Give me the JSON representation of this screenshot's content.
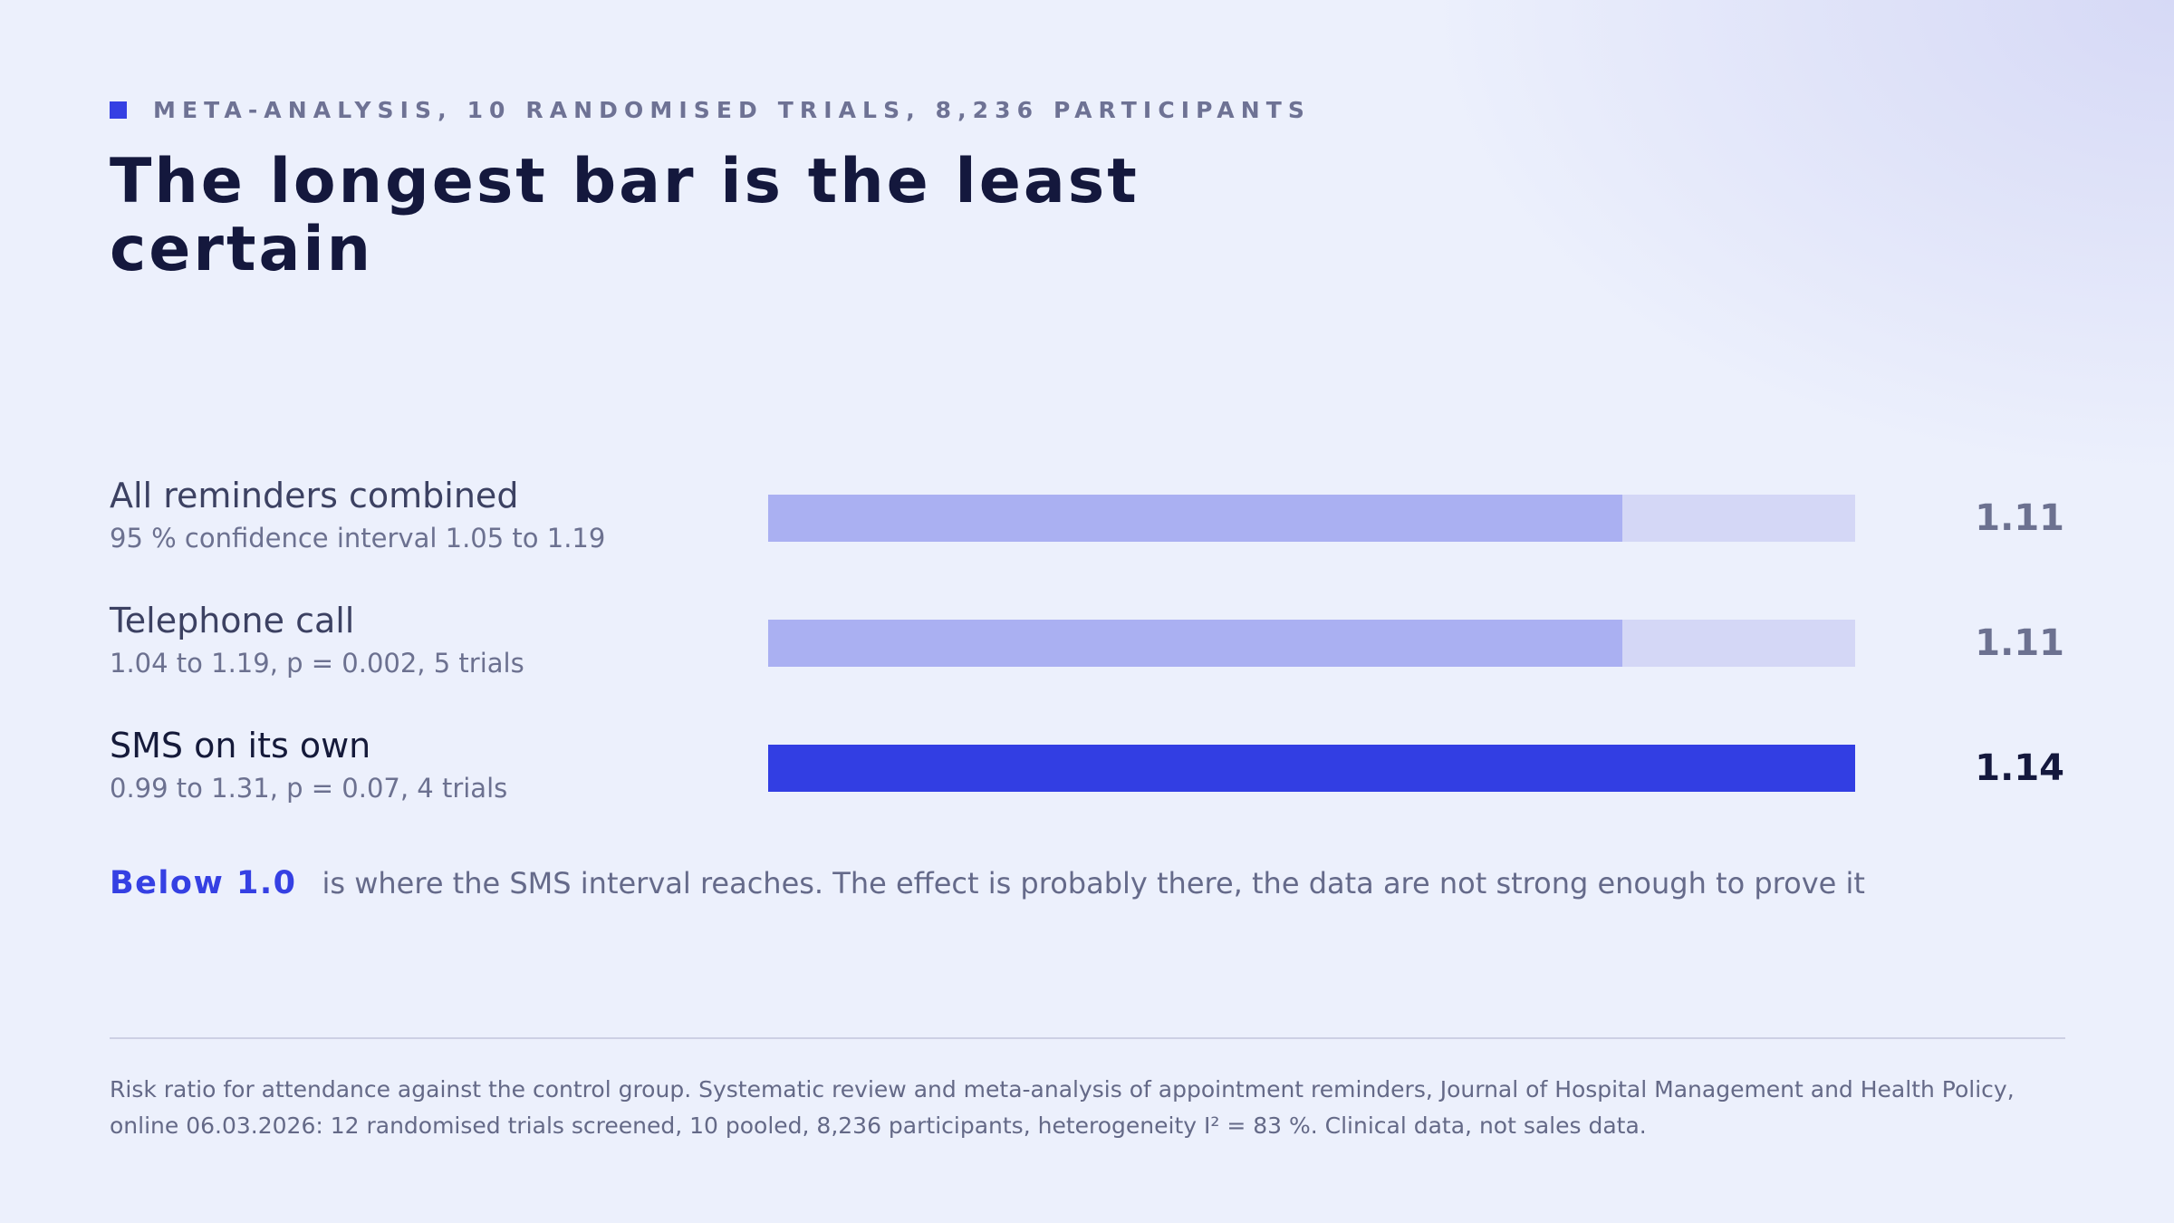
{
  "kicker": "META-ANALYSIS, 10 RANDOMISED TRIALS, 8,236 PARTICIPANTS",
  "title": "The longest bar is the least certain",
  "colors": {
    "accent": "#3540e3",
    "bar_muted": "#aab0f2",
    "track": "#d4d7f6",
    "title": "#14183d"
  },
  "chart_data": {
    "type": "bar",
    "orientation": "horizontal",
    "categories": [
      "All reminders combined",
      "Telephone call",
      "SMS on its own"
    ],
    "values": [
      1.11,
      1.11,
      1.14
    ],
    "value_labels": [
      "1.11",
      "1.11",
      "1.14"
    ],
    "subtitles": [
      "95 % confidence interval 1.05 to 1.19",
      "1.04 to 1.19, p = 0.002, 5 trials",
      "0.99 to 1.31, p = 0.07, 4 trials"
    ],
    "highlight_index": 2,
    "xlim": [
      1.0,
      1.14
    ]
  },
  "callout": {
    "key": "Below 1.0",
    "text": "is where the SMS interval reaches. The effect is probably there, the data are not strong enough to prove it"
  },
  "footnote": "Risk ratio for attendance against the control group. Systematic review and meta-analysis of appointment reminders, Journal of Hospital Management and Health Policy, online 06.03.2026: 12 randomised trials screened, 10 pooled, 8,236 participants, heterogeneity I² = 83 %. Clinical data, not sales data."
}
